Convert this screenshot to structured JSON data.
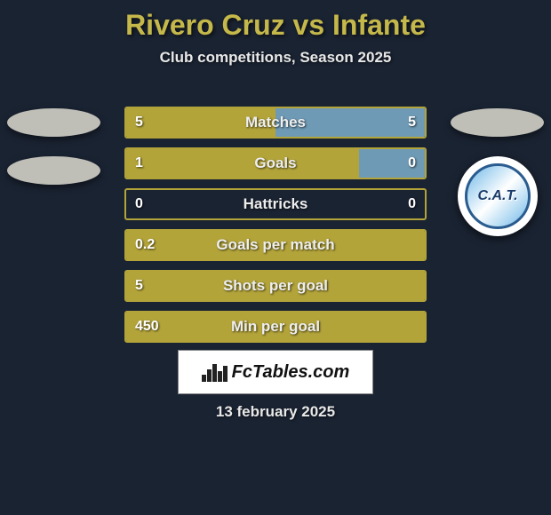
{
  "title_color": "#c5b84a",
  "player_a": "Rivero Cruz",
  "vs": " vs ",
  "player_b": "Infante",
  "subtitle": "Club competitions, Season 2025",
  "background_color": "#1a2332",
  "bar_color": "#b3a43a",
  "border_color": "#b3a43a",
  "right_fill_color": "#6f9ab5",
  "badge_text": "C.A.T.",
  "rows": [
    {
      "label": "Matches",
      "left": "5",
      "right": "5",
      "left_pct": 50,
      "right_pct": 50
    },
    {
      "label": "Goals",
      "left": "1",
      "right": "0",
      "left_pct": 78,
      "right_pct": 22
    },
    {
      "label": "Hattricks",
      "left": "0",
      "right": "0",
      "left_pct": 0,
      "right_pct": 0
    },
    {
      "label": "Goals per match",
      "left": "0.2",
      "right": "",
      "left_pct": 100,
      "right_pct": 0
    },
    {
      "label": "Shots per goal",
      "left": "5",
      "right": "",
      "left_pct": 100,
      "right_pct": 0
    },
    {
      "label": "Min per goal",
      "left": "450",
      "right": "",
      "left_pct": 100,
      "right_pct": 0
    }
  ],
  "logo_text": "FcTables.com",
  "date": "13 february 2025"
}
